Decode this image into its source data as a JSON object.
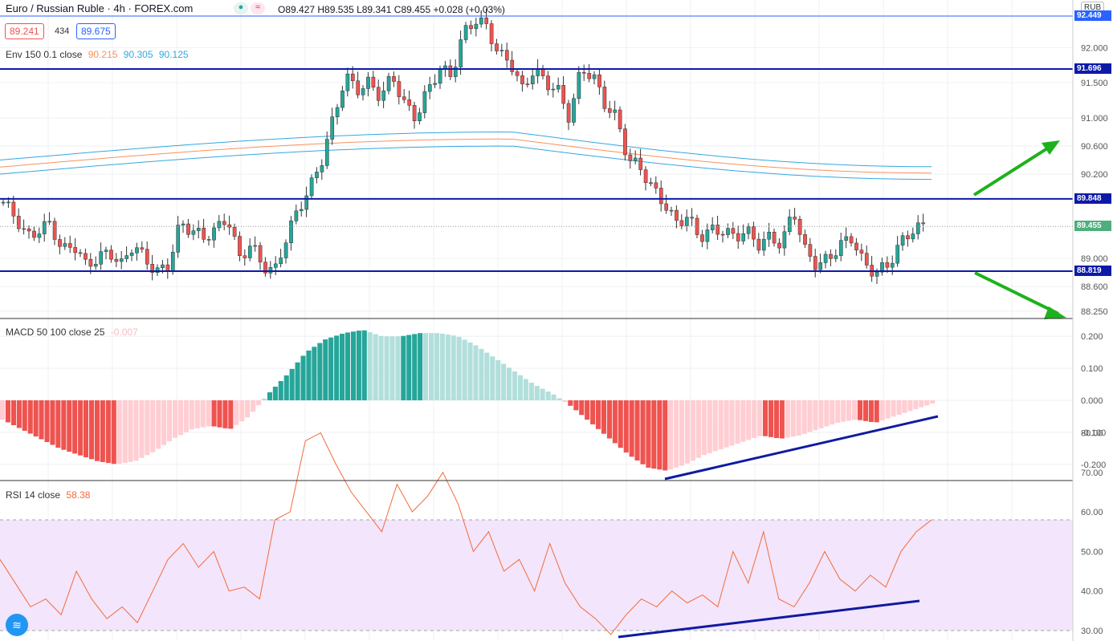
{
  "header": {
    "title": "Euro / Russian Ruble · 4h · FOREX.com",
    "ohlc": "O89.427 H89.535 L89.341 C89.455 +0.028 (+0.03%)",
    "sell_price": "89.241",
    "spread": "434",
    "buy_price": "89.675",
    "currency": "RUB"
  },
  "indicators": {
    "env": {
      "label": "Env 150 0.1 close",
      "v1": "90.215",
      "v2": "90.305",
      "v3": "90.125"
    },
    "macd": {
      "label": "MACD 50 100 close 25",
      "value": "-0.007"
    },
    "rsi": {
      "label": "RSI 14 close",
      "value": "58.38"
    }
  },
  "price_axis": {
    "ticks": [
      "92.000",
      "91.500",
      "91.000",
      "90.600",
      "90.200",
      "89.000",
      "88.600",
      "88.250"
    ],
    "badges": [
      {
        "text": "92.449",
        "color": "#2962ff"
      },
      {
        "text": "91.696",
        "color": "#0d1aa8"
      },
      {
        "text": "89.848",
        "color": "#0d1aa8"
      },
      {
        "text": "89.455",
        "color": "#4caf7d"
      },
      {
        "text": "88.819",
        "color": "#0d1aa8"
      }
    ]
  },
  "macd_axis": {
    "ticks": [
      "0.200",
      "0.100",
      "0.000",
      "-0.100",
      "-0.200"
    ]
  },
  "rsi_axis": {
    "ticks": [
      "80.00",
      "70.00",
      "60.00",
      "50.00",
      "40.00",
      "30.00"
    ]
  },
  "colors": {
    "up": "#26a69a",
    "down": "#ef5350",
    "level": "#0d1aa8",
    "arrow": "#1db21d",
    "env_mid": "#f7925d",
    "env_band": "#34a7e0",
    "rsi_line": "#f26b3a",
    "rsi_band": "#f3e5fb"
  },
  "chart_data": {
    "type": "candlestick",
    "levels": [
      91.696,
      89.848,
      88.819
    ],
    "last_price": 89.455,
    "high_mark": 92.449,
    "envelope": {
      "start": [
        90.3,
        90.4,
        90.2
      ],
      "peak": [
        90.7,
        90.8,
        90.6
      ],
      "end": [
        90.215,
        90.305,
        90.125
      ]
    },
    "close_path": [
      89.8,
      89.6,
      89.3,
      89.4,
      89.5,
      89.1,
      89.2,
      88.9,
      89.0,
      89.1,
      88.9,
      89.2,
      89.0,
      88.8,
      88.9,
      89.5,
      89.4,
      89.3,
      89.4,
      89.6,
      89.0,
      89.2,
      88.9,
      88.8,
      89.3,
      89.7,
      90.0,
      90.4,
      91.0,
      91.6,
      91.4,
      91.5,
      91.3,
      91.6,
      91.2,
      91.0,
      91.4,
      91.7,
      91.6,
      92.2,
      92.4,
      92.3,
      91.9,
      91.8,
      91.4,
      91.7,
      91.5,
      91.4,
      91.0,
      91.7,
      91.6,
      91.2,
      91.0,
      90.4,
      90.3,
      90.0,
      89.8,
      89.5,
      89.6,
      89.3,
      89.4,
      89.4,
      89.3,
      89.4,
      89.2,
      89.3,
      89.2,
      89.7,
      89.1,
      88.9,
      89.0,
      89.2,
      89.3,
      88.9,
      88.8,
      88.9,
      89.2,
      89.4,
      89.455
    ],
    "macd_hist": [
      -0.06,
      -0.09,
      -0.12,
      -0.15,
      -0.17,
      -0.19,
      -0.2,
      -0.19,
      -0.16,
      -0.12,
      -0.09,
      -0.08,
      -0.09,
      -0.05,
      0.02,
      0.08,
      0.15,
      0.19,
      0.21,
      0.22,
      0.2,
      0.2,
      0.21,
      0.21,
      0.2,
      0.17,
      0.13,
      0.09,
      0.05,
      0.02,
      -0.02,
      -0.07,
      -0.12,
      -0.17,
      -0.21,
      -0.22,
      -0.2,
      -0.17,
      -0.15,
      -0.13,
      -0.11,
      -0.12,
      -0.11,
      -0.09,
      -0.07,
      -0.06,
      -0.07,
      -0.05,
      -0.03,
      -0.01
    ],
    "rsi": [
      48,
      42,
      36,
      38,
      34,
      45,
      38,
      33,
      36,
      32,
      40,
      48,
      52,
      46,
      50,
      40,
      41,
      38,
      58,
      60,
      78,
      80,
      72,
      65,
      60,
      55,
      67,
      60,
      64,
      70,
      62,
      50,
      55,
      45,
      48,
      40,
      52,
      42,
      36,
      33,
      29,
      34,
      38,
      36,
      40,
      37,
      39,
      36,
      50,
      42,
      55,
      38,
      36,
      42,
      50,
      43,
      40,
      44,
      41,
      50,
      55,
      58
    ]
  }
}
